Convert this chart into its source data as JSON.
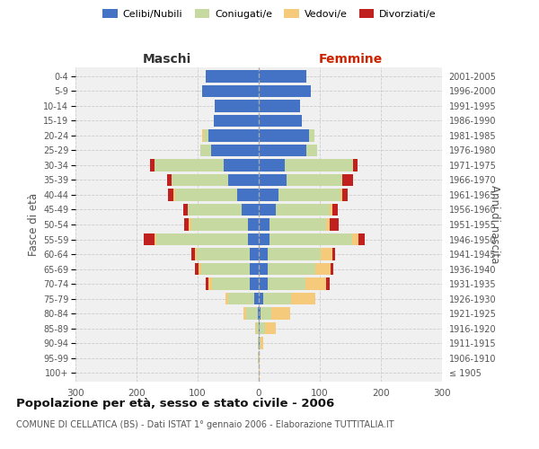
{
  "age_groups": [
    "100+",
    "95-99",
    "90-94",
    "85-89",
    "80-84",
    "75-79",
    "70-74",
    "65-69",
    "60-64",
    "55-59",
    "50-54",
    "45-49",
    "40-44",
    "35-39",
    "30-34",
    "25-29",
    "20-24",
    "15-19",
    "10-14",
    "5-9",
    "0-4"
  ],
  "birth_years": [
    "≤ 1905",
    "1906-1910",
    "1911-1915",
    "1916-1920",
    "1921-1925",
    "1926-1930",
    "1931-1935",
    "1936-1940",
    "1941-1945",
    "1946-1950",
    "1951-1955",
    "1956-1960",
    "1961-1965",
    "1966-1970",
    "1971-1975",
    "1976-1980",
    "1981-1985",
    "1986-1990",
    "1991-1995",
    "1996-2000",
    "2001-2005"
  ],
  "maschi_celibi": [
    0,
    0,
    0,
    0,
    2,
    8,
    15,
    14,
    14,
    17,
    18,
    28,
    35,
    50,
    58,
    78,
    82,
    73,
    72,
    92,
    87
  ],
  "maschi_coniugati": [
    0,
    1,
    1,
    4,
    18,
    42,
    62,
    80,
    88,
    150,
    93,
    88,
    102,
    92,
    112,
    18,
    8,
    0,
    0,
    0,
    0
  ],
  "maschi_vedovi": [
    0,
    0,
    0,
    2,
    5,
    5,
    5,
    5,
    3,
    3,
    3,
    0,
    3,
    0,
    0,
    0,
    2,
    0,
    0,
    0,
    0
  ],
  "maschi_divorziati": [
    0,
    0,
    0,
    0,
    0,
    0,
    5,
    5,
    5,
    18,
    8,
    8,
    8,
    8,
    8,
    0,
    0,
    0,
    0,
    0,
    0
  ],
  "femmine_celibi": [
    0,
    0,
    1,
    2,
    3,
    8,
    14,
    14,
    14,
    18,
    18,
    28,
    32,
    45,
    42,
    78,
    83,
    70,
    68,
    85,
    78
  ],
  "femmine_coniugati": [
    0,
    0,
    2,
    8,
    18,
    45,
    62,
    78,
    88,
    135,
    93,
    88,
    102,
    92,
    112,
    18,
    8,
    0,
    0,
    0,
    0
  ],
  "femmine_vedovi": [
    1,
    2,
    5,
    18,
    30,
    40,
    35,
    25,
    18,
    10,
    5,
    5,
    3,
    0,
    0,
    0,
    0,
    0,
    0,
    0,
    0
  ],
  "femmine_divorziati": [
    0,
    0,
    0,
    0,
    0,
    0,
    5,
    5,
    5,
    10,
    15,
    8,
    8,
    18,
    8,
    0,
    0,
    0,
    0,
    0,
    0
  ],
  "color_celibi": "#4472C4",
  "color_coniugati": "#C5D9A0",
  "color_vedovi": "#F5CA7A",
  "color_divorziati": "#C0211F",
  "title": "Popolazione per età, sesso e stato civile - 2006",
  "subtitle": "COMUNE DI CELLATICA (BS) - Dati ISTAT 1° gennaio 2006 - Elaborazione TUTTITALIA.IT",
  "ylabel_left": "Fasce di età",
  "ylabel_right": "Anni di nascita",
  "xlabel_maschi": "Maschi",
  "xlabel_femmine": "Femmine",
  "xlim": 300,
  "bg_color": "#FFFFFF",
  "plot_bg": "#F0F0F0",
  "grid_color": "#CCCCCC"
}
